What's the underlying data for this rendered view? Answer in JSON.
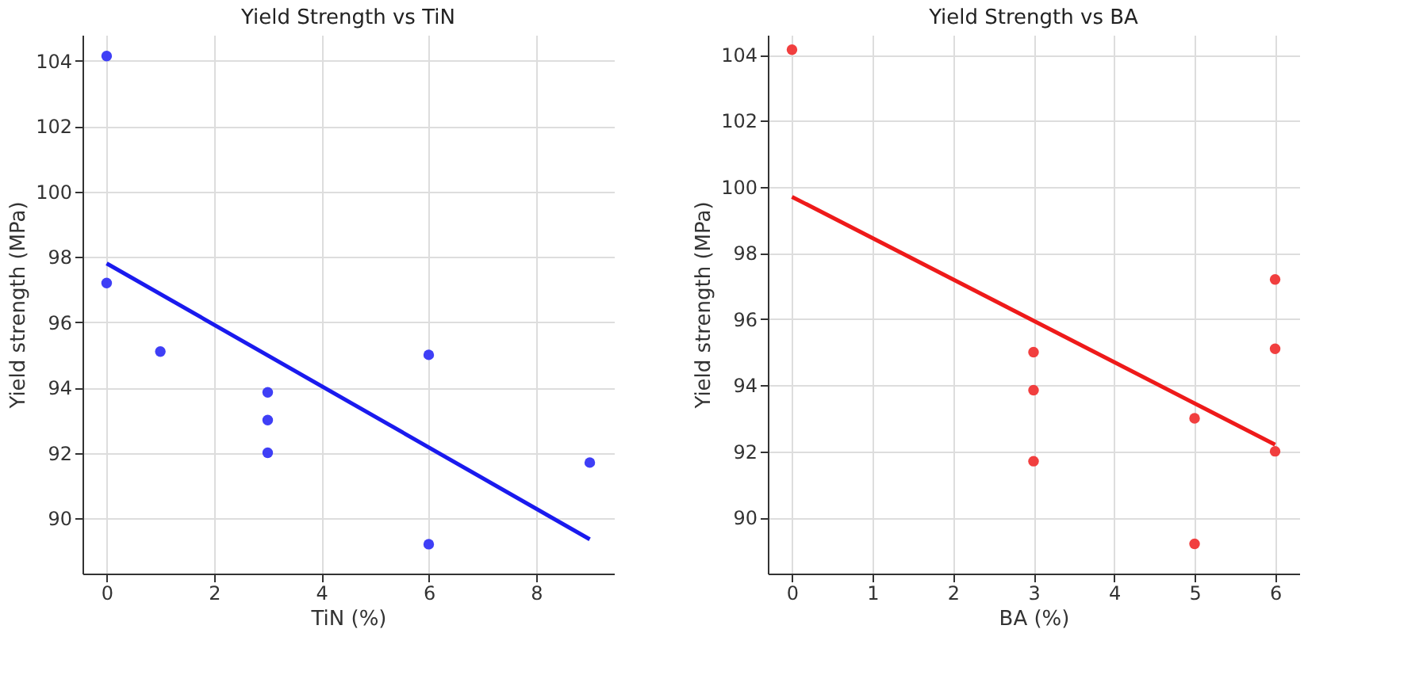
{
  "chart_data": [
    {
      "type": "scatter",
      "title": "Yield Strength vs TiN",
      "xlabel": "TiN (%)",
      "ylabel": "Yield strength (MPa)",
      "xlim": [
        -0.45,
        9.45
      ],
      "ylim": [
        88.3,
        104.8
      ],
      "xticks": [
        0,
        2,
        4,
        6,
        8
      ],
      "yticks": [
        90,
        92,
        94,
        96,
        98,
        100,
        102,
        104
      ],
      "grid": true,
      "series": [
        {
          "color": "#3535f5",
          "marker": "circle",
          "x": [
            0,
            0,
            1,
            3,
            3,
            3,
            6,
            6,
            9
          ],
          "values": [
            104.15,
            97.2,
            95.1,
            93.85,
            93.0,
            92.0,
            95.0,
            89.2,
            91.7
          ]
        },
        {
          "type": "line",
          "color": "#1a1aee",
          "x": [
            0,
            9
          ],
          "values": [
            97.8,
            89.35
          ]
        }
      ]
    },
    {
      "type": "scatter",
      "title": "Yield Strength vs BA",
      "xlabel": "BA (%)",
      "ylabel": "Yield strength (MPa)",
      "xlim": [
        -0.3,
        6.3
      ],
      "ylim": [
        88.3,
        104.6
      ],
      "xticks": [
        0,
        1,
        2,
        3,
        4,
        5,
        6
      ],
      "yticks": [
        90,
        92,
        94,
        96,
        98,
        100,
        102,
        104
      ],
      "grid": true,
      "series": [
        {
          "color": "#f03535",
          "marker": "circle",
          "x": [
            0,
            3,
            3,
            3,
            5,
            5,
            6,
            6,
            6
          ],
          "values": [
            104.15,
            95.0,
            93.85,
            91.7,
            93.0,
            89.2,
            97.2,
            95.1,
            92.0
          ]
        },
        {
          "type": "line",
          "color": "#ee1a1a",
          "x": [
            0,
            6
          ],
          "values": [
            99.7,
            92.2
          ]
        }
      ]
    }
  ]
}
